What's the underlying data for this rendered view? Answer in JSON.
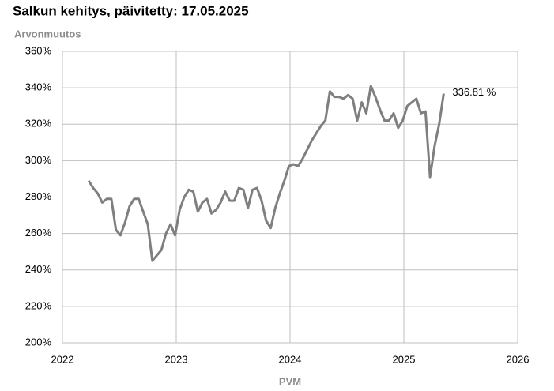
{
  "chart_data": {
    "type": "line",
    "title": "Salkun kehitys, päivitetty: 17.05.2025",
    "y_label": "Arvonmuutos",
    "x_label": "PVM",
    "xlim": [
      2022,
      2026
    ],
    "xticks": [
      2022,
      2023,
      2024,
      2025,
      2026
    ],
    "ylim": [
      200,
      360
    ],
    "yticks": [
      {
        "value": 200,
        "label": "200%"
      },
      {
        "value": 220,
        "label": "220%"
      },
      {
        "value": 240,
        "label": "240%"
      },
      {
        "value": 260,
        "label": "260%"
      },
      {
        "value": 280,
        "label": "280%"
      },
      {
        "value": 300,
        "label": "300%"
      },
      {
        "value": 320,
        "label": "320%"
      },
      {
        "value": 340,
        "label": "340%"
      },
      {
        "value": 360,
        "label": "360%"
      }
    ],
    "grid": true,
    "x": [
      2022.23,
      2022.27,
      2022.31,
      2022.35,
      2022.39,
      2022.43,
      2022.47,
      2022.51,
      2022.55,
      2022.59,
      2022.63,
      2022.67,
      2022.71,
      2022.75,
      2022.79,
      2022.83,
      2022.87,
      2022.91,
      2022.95,
      2022.99,
      2023.03,
      2023.07,
      2023.11,
      2023.15,
      2023.19,
      2023.23,
      2023.27,
      2023.31,
      2023.35,
      2023.39,
      2023.43,
      2023.47,
      2023.51,
      2023.55,
      2023.59,
      2023.63,
      2023.67,
      2023.71,
      2023.75,
      2023.79,
      2023.83,
      2023.87,
      2023.91,
      2023.95,
      2023.99,
      2024.03,
      2024.07,
      2024.11,
      2024.15,
      2024.19,
      2024.23,
      2024.27,
      2024.31,
      2024.35,
      2024.39,
      2024.43,
      2024.47,
      2024.51,
      2024.55,
      2024.59,
      2024.63,
      2024.67,
      2024.71,
      2024.75,
      2024.79,
      2024.83,
      2024.87,
      2024.91,
      2024.95,
      2024.99,
      2025.03,
      2025.07,
      2025.11,
      2025.15,
      2025.19,
      2025.23,
      2025.27,
      2025.31,
      2025.35
    ],
    "series": [
      {
        "name": "Arvonmuutos",
        "color": "#7f7f7f",
        "values": [
          289,
          285,
          282,
          277,
          279,
          279,
          262,
          259,
          266,
          275,
          279,
          279,
          272,
          265,
          245,
          248,
          251,
          260,
          265,
          259,
          273,
          280,
          284,
          283,
          272,
          277,
          279,
          271,
          273,
          277,
          283,
          278,
          278,
          285,
          284,
          274,
          284,
          285,
          278,
          267,
          263,
          274,
          282,
          289,
          297,
          298,
          297,
          301,
          306,
          311,
          315,
          319,
          322,
          338,
          335,
          335,
          334,
          336,
          334,
          322,
          332,
          326,
          341,
          335,
          328,
          322,
          322,
          326,
          318,
          322,
          330,
          332,
          334,
          326,
          327,
          291,
          308,
          320,
          336.81
        ]
      }
    ],
    "end_label": "336.81 %"
  }
}
